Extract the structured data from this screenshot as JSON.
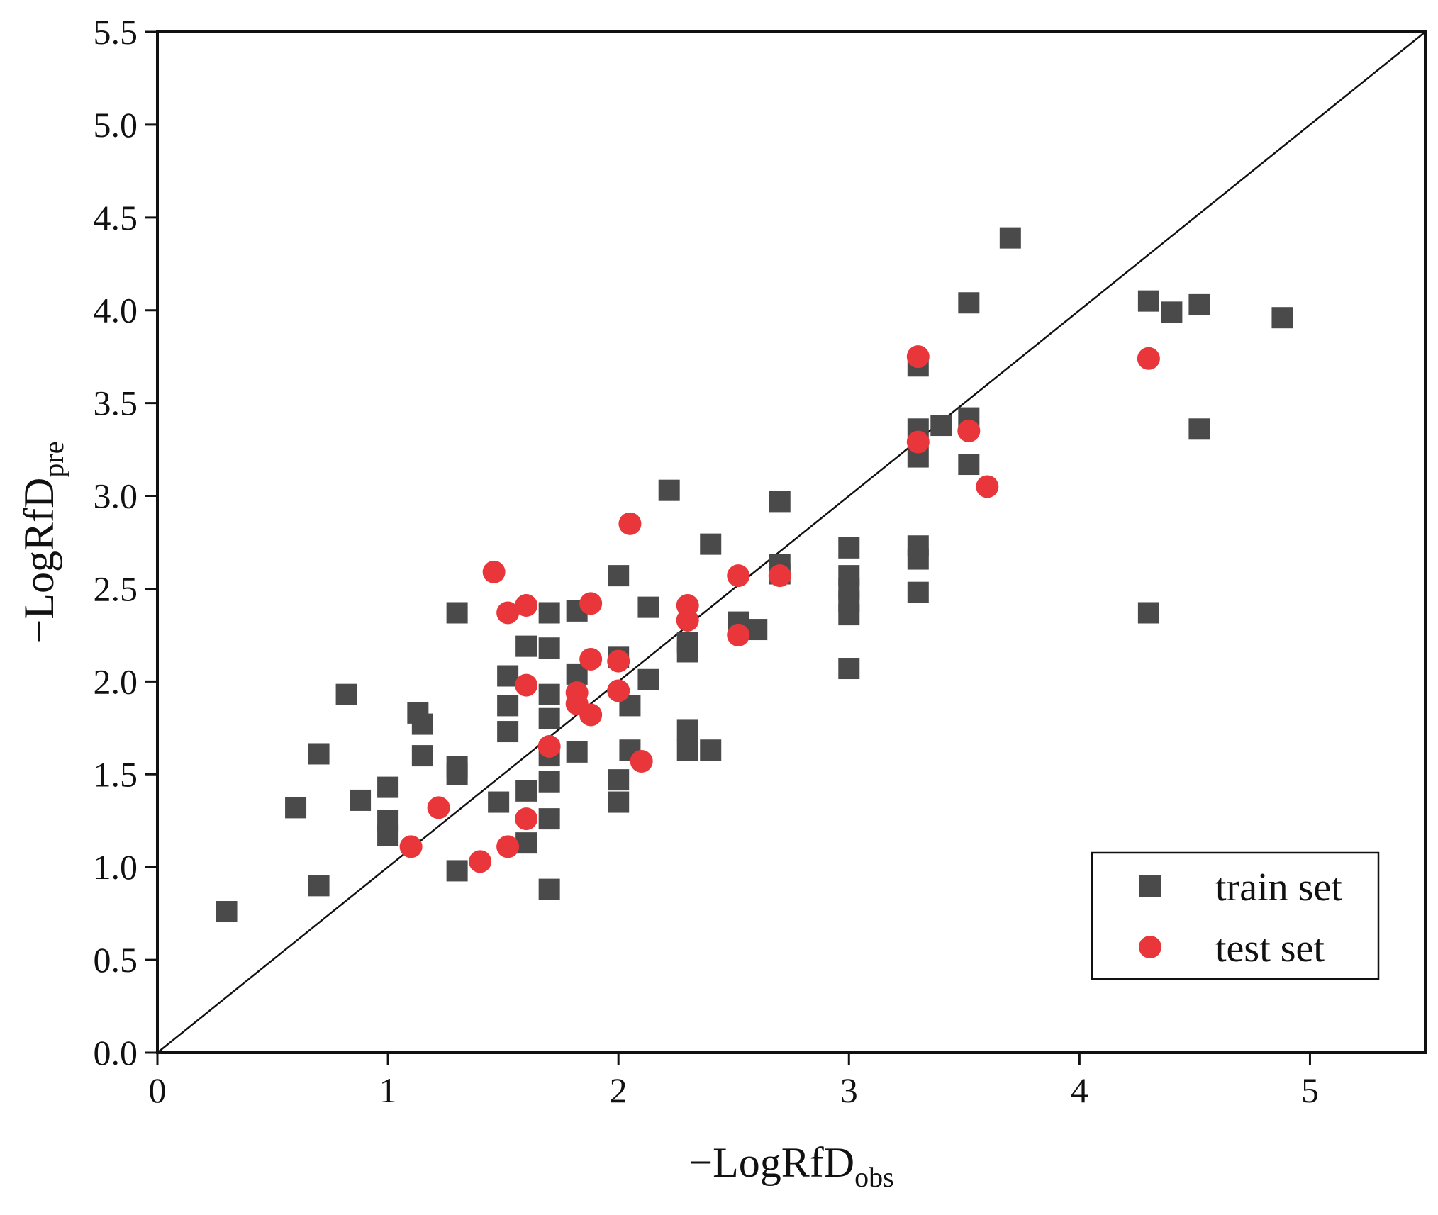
{
  "chart_data": {
    "type": "scatter",
    "xlabel": "−LogRfD",
    "xlabel_sub": "obs",
    "ylabel": "−LogRfD",
    "ylabel_sub": "pre",
    "xlim": [
      0,
      5.5
    ],
    "ylim": [
      0,
      5.5
    ],
    "x_ticks": [
      "0",
      "1",
      "2",
      "3",
      "4",
      "5"
    ],
    "y_ticks": [
      "0.0",
      "0.5",
      "1.0",
      "1.5",
      "2.0",
      "2.5",
      "3.0",
      "3.5",
      "4.0",
      "4.5",
      "5.0",
      "5.5"
    ],
    "reference_line": "y = x",
    "legend_position": "bottom-right",
    "series": [
      {
        "name": "train set",
        "marker": "square",
        "color": "#4a4a4a",
        "points": [
          [
            0.3,
            0.76
          ],
          [
            0.6,
            1.32
          ],
          [
            0.7,
            1.61
          ],
          [
            0.7,
            0.9
          ],
          [
            0.82,
            1.93
          ],
          [
            0.88,
            1.36
          ],
          [
            1.0,
            1.43
          ],
          [
            1.0,
            1.25
          ],
          [
            1.0,
            1.17
          ],
          [
            1.13,
            1.83
          ],
          [
            1.15,
            1.77
          ],
          [
            1.15,
            1.6
          ],
          [
            1.3,
            2.37
          ],
          [
            1.3,
            1.54
          ],
          [
            1.3,
            1.5
          ],
          [
            1.3,
            0.98
          ],
          [
            1.48,
            1.35
          ],
          [
            1.52,
            2.03
          ],
          [
            1.52,
            1.87
          ],
          [
            1.52,
            1.73
          ],
          [
            1.6,
            2.19
          ],
          [
            1.6,
            1.41
          ],
          [
            1.6,
            1.13
          ],
          [
            1.7,
            2.37
          ],
          [
            1.7,
            2.18
          ],
          [
            1.7,
            1.93
          ],
          [
            1.7,
            1.8
          ],
          [
            1.7,
            1.6
          ],
          [
            1.7,
            1.46
          ],
          [
            1.7,
            1.26
          ],
          [
            1.7,
            0.88
          ],
          [
            1.82,
            2.38
          ],
          [
            1.82,
            2.04
          ],
          [
            1.82,
            1.62
          ],
          [
            2.0,
            2.57
          ],
          [
            2.0,
            2.13
          ],
          [
            2.0,
            1.47
          ],
          [
            2.0,
            1.35
          ],
          [
            2.05,
            1.87
          ],
          [
            2.05,
            1.63
          ],
          [
            2.13,
            2.4
          ],
          [
            2.13,
            2.01
          ],
          [
            2.22,
            3.03
          ],
          [
            2.3,
            2.21
          ],
          [
            2.3,
            2.16
          ],
          [
            2.3,
            1.74
          ],
          [
            2.3,
            1.63
          ],
          [
            2.4,
            2.74
          ],
          [
            2.4,
            1.63
          ],
          [
            2.52,
            2.32
          ],
          [
            2.6,
            2.28
          ],
          [
            2.7,
            2.97
          ],
          [
            2.7,
            2.63
          ],
          [
            2.7,
            2.58
          ],
          [
            3.0,
            2.72
          ],
          [
            3.0,
            2.57
          ],
          [
            3.0,
            2.5
          ],
          [
            3.0,
            2.43
          ],
          [
            3.0,
            2.36
          ],
          [
            3.0,
            2.07
          ],
          [
            3.3,
            3.7
          ],
          [
            3.3,
            3.36
          ],
          [
            3.3,
            3.21
          ],
          [
            3.3,
            2.73
          ],
          [
            3.3,
            2.66
          ],
          [
            3.3,
            2.48
          ],
          [
            3.4,
            3.38
          ],
          [
            3.52,
            4.04
          ],
          [
            3.52,
            3.42
          ],
          [
            3.52,
            3.17
          ],
          [
            3.7,
            4.39
          ],
          [
            4.3,
            4.05
          ],
          [
            4.3,
            2.37
          ],
          [
            4.4,
            3.99
          ],
          [
            4.52,
            4.03
          ],
          [
            4.52,
            3.36
          ],
          [
            4.88,
            3.96
          ]
        ]
      },
      {
        "name": "test set",
        "marker": "circle",
        "color": "#e8363a",
        "points": [
          [
            1.1,
            1.11
          ],
          [
            1.22,
            1.32
          ],
          [
            1.4,
            1.03
          ],
          [
            1.46,
            2.59
          ],
          [
            1.52,
            1.11
          ],
          [
            1.52,
            2.37
          ],
          [
            1.6,
            2.41
          ],
          [
            1.6,
            1.98
          ],
          [
            1.6,
            1.26
          ],
          [
            1.7,
            1.65
          ],
          [
            1.82,
            1.94
          ],
          [
            1.82,
            1.88
          ],
          [
            1.88,
            2.42
          ],
          [
            1.88,
            2.12
          ],
          [
            1.88,
            1.82
          ],
          [
            2.0,
            2.11
          ],
          [
            2.0,
            1.95
          ],
          [
            2.05,
            2.85
          ],
          [
            2.1,
            1.57
          ],
          [
            2.3,
            2.41
          ],
          [
            2.3,
            2.33
          ],
          [
            2.52,
            2.57
          ],
          [
            2.52,
            2.25
          ],
          [
            2.7,
            2.57
          ],
          [
            3.3,
            3.75
          ],
          [
            3.3,
            3.29
          ],
          [
            3.52,
            3.35
          ],
          [
            3.6,
            3.05
          ],
          [
            4.3,
            3.74
          ]
        ]
      }
    ]
  }
}
